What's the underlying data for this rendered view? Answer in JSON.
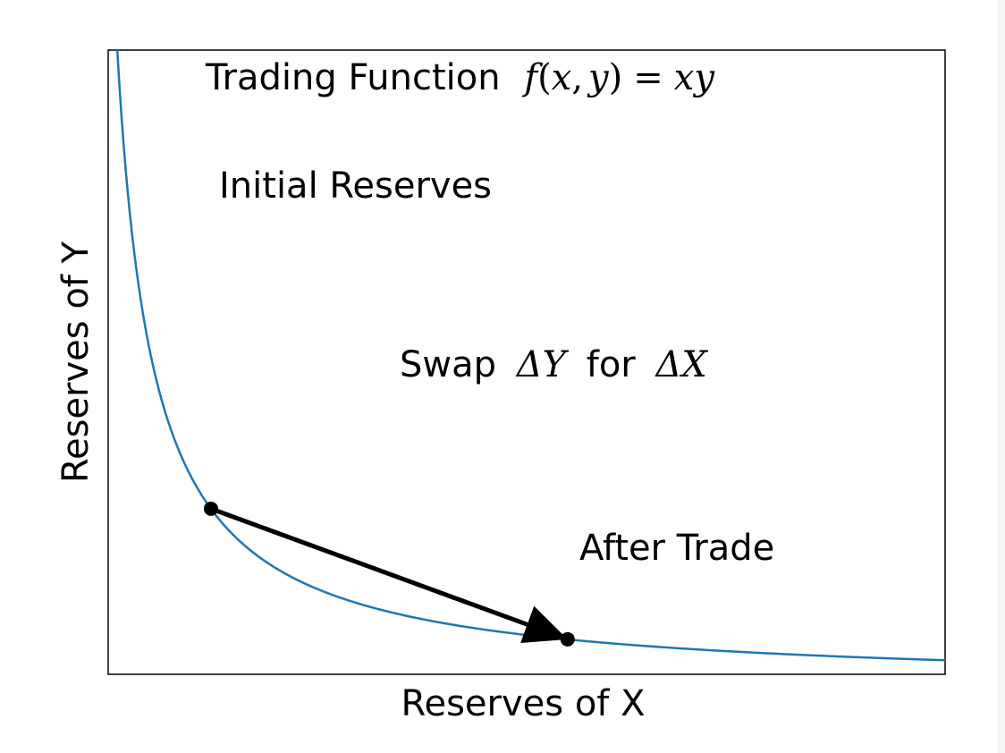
{
  "chart_data": {
    "type": "line",
    "title_text": "Trading Function",
    "title_math": {
      "f": "f",
      "open": "(",
      "x": "x",
      "comma": ",",
      "y": "y",
      "close": ")",
      "eq": "=",
      "rhs": "xy"
    },
    "xlabel": "Reserves of X",
    "ylabel": "Reserves of Y",
    "xlim": [
      0.3,
      9.5
    ],
    "ylim": [
      0.2,
      10.0
    ],
    "curve": {
      "function": "y = k / x",
      "k": 4,
      "x_range": [
        0.3,
        9.5
      ],
      "color": "#1f77b4"
    },
    "points": [
      {
        "label": "Initial Reserves",
        "x": 1.43,
        "y": 2.8
      },
      {
        "label": "After Trade",
        "x": 5.35,
        "y": 0.75
      }
    ],
    "arrow": {
      "from": 0,
      "to": 1,
      "label_prefix": "Swap",
      "label_math1": "ΔY",
      "label_mid": "for",
      "label_math2": "ΔX"
    },
    "ticks_shown": false,
    "grid": false,
    "legend": "none"
  },
  "colors": {
    "curve": "#1f77b4",
    "marks": "#000000",
    "frame": "#000000",
    "strip": "#f4f4f4"
  }
}
